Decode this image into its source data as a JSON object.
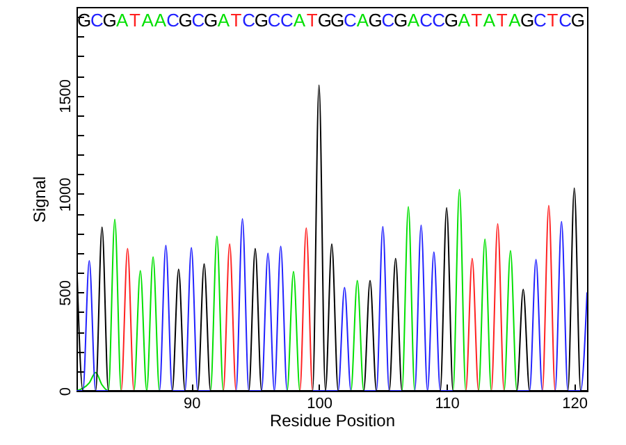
{
  "chart_data": {
    "type": "line",
    "xlabel": "Residue Position",
    "ylabel": "Signal",
    "xlim": [
      81,
      121
    ],
    "xticks": [
      90,
      100,
      110,
      120
    ],
    "ylim": [
      0,
      1950
    ],
    "yticks": [
      0,
      {
        "value": 100,
        "label": null
      },
      {
        "value": 200,
        "label": null
      },
      {
        "value": 300,
        "label": null
      },
      {
        "value": 400,
        "label": null
      },
      500,
      {
        "value": 600,
        "label": null
      },
      {
        "value": 700,
        "label": null
      },
      {
        "value": 800,
        "label": null
      },
      {
        "value": 900,
        "label": null
      },
      1000,
      {
        "value": 1100,
        "label": null
      },
      {
        "value": 1200,
        "label": null
      },
      {
        "value": 1300,
        "label": null
      },
      {
        "value": 1400,
        "label": null
      },
      1500,
      {
        "value": 1600,
        "label": null
      },
      {
        "value": 1700,
        "label": null
      },
      {
        "value": 1800,
        "label": null
      },
      {
        "value": 1900,
        "label": null
      }
    ],
    "series": [
      {
        "color": "#00e000",
        "x": [
          81,
          82,
          82.5,
          83,
          83.5,
          84,
          84.5,
          85.5,
          86,
          86.5,
          87,
          87.5,
          91.5,
          92,
          92.5,
          97.5,
          98,
          98.5,
          102.5,
          103,
          103.5,
          106.5,
          107,
          107.5,
          110.5,
          111,
          111.5,
          112.5,
          113,
          113.5,
          114.5,
          115,
          115.5,
          121
        ],
        "values": [
          0,
          40,
          93,
          30,
          0,
          871,
          0,
          0,
          610,
          0,
          680,
          0,
          0,
          785,
          0,
          0,
          606,
          0,
          0,
          560,
          0,
          0,
          935,
          0,
          0,
          1023,
          0,
          0,
          770,
          0,
          0,
          712,
          0,
          0
        ]
      },
      {
        "color": "#ff2020",
        "x": [
          81,
          84.5,
          85,
          85.5,
          92.5,
          93,
          93.5,
          98.5,
          99,
          99.5,
          111.5,
          112,
          112.5,
          113.5,
          114,
          114.5,
          117.5,
          118,
          118.5,
          121
        ],
        "values": [
          0,
          0,
          722,
          0,
          0,
          745,
          0,
          0,
          827,
          0,
          0,
          672,
          0,
          0,
          848,
          0,
          0,
          941,
          0,
          0
        ]
      },
      {
        "color": "#2020ff",
        "x": [
          81,
          81.5,
          82,
          82.5,
          87.5,
          88,
          88.5,
          89.5,
          90,
          90.5,
          93.5,
          94,
          94.5,
          95.5,
          96,
          96.5,
          97,
          97.5,
          101.5,
          102,
          102.5,
          104.5,
          105,
          105.5,
          107.5,
          108,
          108.5,
          109,
          109.5,
          116.5,
          117,
          117.5,
          118.5,
          119,
          119.5,
          120.5,
          121
        ],
        "values": [
          0,
          0,
          661,
          0,
          0,
          738,
          0,
          0,
          727,
          0,
          0,
          873,
          0,
          0,
          699,
          0,
          734,
          0,
          0,
          525,
          0,
          0,
          834,
          0,
          0,
          841,
          0,
          705,
          0,
          0,
          667,
          0,
          0,
          859,
          0,
          0,
          500
        ]
      },
      {
        "color": "#000000",
        "x": [
          81,
          81.5,
          82.5,
          83,
          83.5,
          88.5,
          89,
          89.5,
          90.5,
          91,
          91.5,
          94.5,
          95,
          95.5,
          99.5,
          100,
          100.5,
          101,
          101.5,
          103.5,
          104,
          104.5,
          105.5,
          106,
          106.5,
          109.5,
          110,
          110.5,
          115.5,
          116,
          116.5,
          119.5,
          120,
          120.5,
          121
        ],
        "values": [
          690,
          0,
          0,
          831,
          0,
          0,
          617,
          0,
          0,
          645,
          0,
          0,
          722,
          0,
          0,
          1553,
          0,
          745,
          0,
          0,
          560,
          0,
          0,
          672,
          0,
          0,
          930,
          0,
          0,
          515,
          0,
          0,
          1030,
          0,
          0
        ]
      }
    ],
    "annotations": [
      "G",
      "C",
      "G",
      "A",
      "T",
      "A",
      "A",
      "C",
      "G",
      "C",
      "G",
      "A",
      "T",
      "C",
      "G",
      "C",
      "C",
      "A",
      "T",
      "G",
      "G",
      "C",
      "A",
      "G",
      "C",
      "G",
      "A",
      "C",
      "C",
      "G",
      "A",
      "T",
      "A",
      "T",
      "A",
      "G",
      "C",
      "T",
      "C",
      "G"
    ]
  }
}
